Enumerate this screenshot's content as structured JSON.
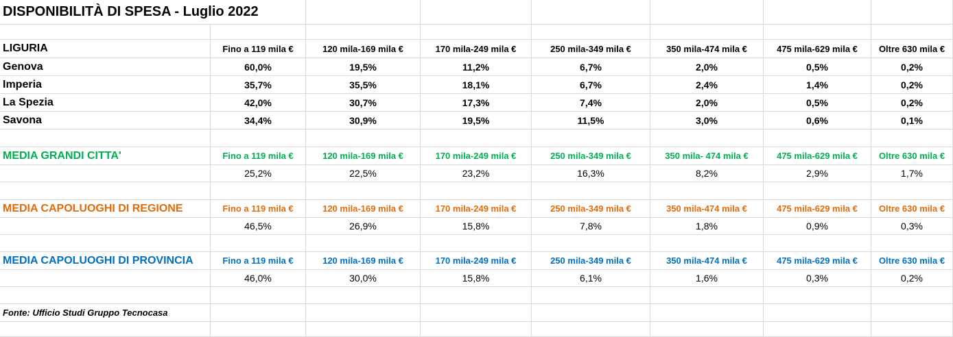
{
  "title": "DISPONIBILITÀ DI SPESA - Luglio 2022",
  "liguria": {
    "label": "LIGURIA",
    "headers": [
      "Fino a 119 mila €",
      "120 mila-169 mila €",
      "170 mila-249 mila €",
      "250 mila-349 mila €",
      "350 mila-474 mila €",
      "475 mila-629 mila €",
      "Oltre 630 mila €"
    ],
    "rows": [
      {
        "city": "Genova",
        "values": [
          "60,0%",
          "19,5%",
          "11,2%",
          "6,7%",
          "2,0%",
          "0,5%",
          "0,2%"
        ]
      },
      {
        "city": "Imperia",
        "values": [
          "35,7%",
          "35,5%",
          "18,1%",
          "6,7%",
          "2,4%",
          "1,4%",
          "0,2%"
        ]
      },
      {
        "city": "La Spezia",
        "values": [
          "42,0%",
          "30,7%",
          "17,3%",
          "7,4%",
          "2,0%",
          "0,5%",
          "0,2%"
        ]
      },
      {
        "city": "Savona",
        "values": [
          "34,4%",
          "30,9%",
          "19,5%",
          "11,5%",
          "3,0%",
          "0,6%",
          "0,1%"
        ]
      }
    ]
  },
  "grandi_citta": {
    "label": "MEDIA GRANDI CITTA'",
    "color": "#00b050",
    "headers": [
      "Fino a 119 mila €",
      "120 mila-169 mila €",
      "170 mila-249 mila €",
      "250 mila-349 mila €",
      "350 mila- 474 mila €",
      "475 mila-629 mila €",
      "Oltre 630 mila €"
    ],
    "values": [
      "25,2%",
      "22,5%",
      "23,2%",
      "16,3%",
      "8,2%",
      "2,9%",
      "1,7%"
    ]
  },
  "capoluoghi_regione": {
    "label": "MEDIA CAPOLUOGHI DI REGIONE",
    "color": "#e26b0a",
    "headers": [
      "Fino a 119 mila €",
      "120 mila-169 mila €",
      "170 mila-249 mila €",
      "250 mila-349 mila €",
      "350 mila-474 mila €",
      "475 mila-629 mila €",
      "Oltre 630 mila €"
    ],
    "values": [
      "46,5%",
      "26,9%",
      "15,8%",
      "7,8%",
      "1,8%",
      "0,9%",
      "0,3%"
    ]
  },
  "capoluoghi_provincia": {
    "label": "MEDIA CAPOLUOGHI DI PROVINCIA",
    "color": "#0070c0",
    "headers": [
      "Fino a 119 mila €",
      "120 mila-169 mila €",
      "170 mila-249 mila €",
      "250 mila-349 mila €",
      "350 mila-474 mila €",
      "475 mila-629 mila €",
      "Oltre 630 mila €"
    ],
    "values": [
      "46,0%",
      "30,0%",
      "15,8%",
      "6,1%",
      "1,6%",
      "0,3%",
      "0,2%"
    ]
  },
  "source": "Fonte: Ufficio Studi Gruppo Tecnocasa"
}
